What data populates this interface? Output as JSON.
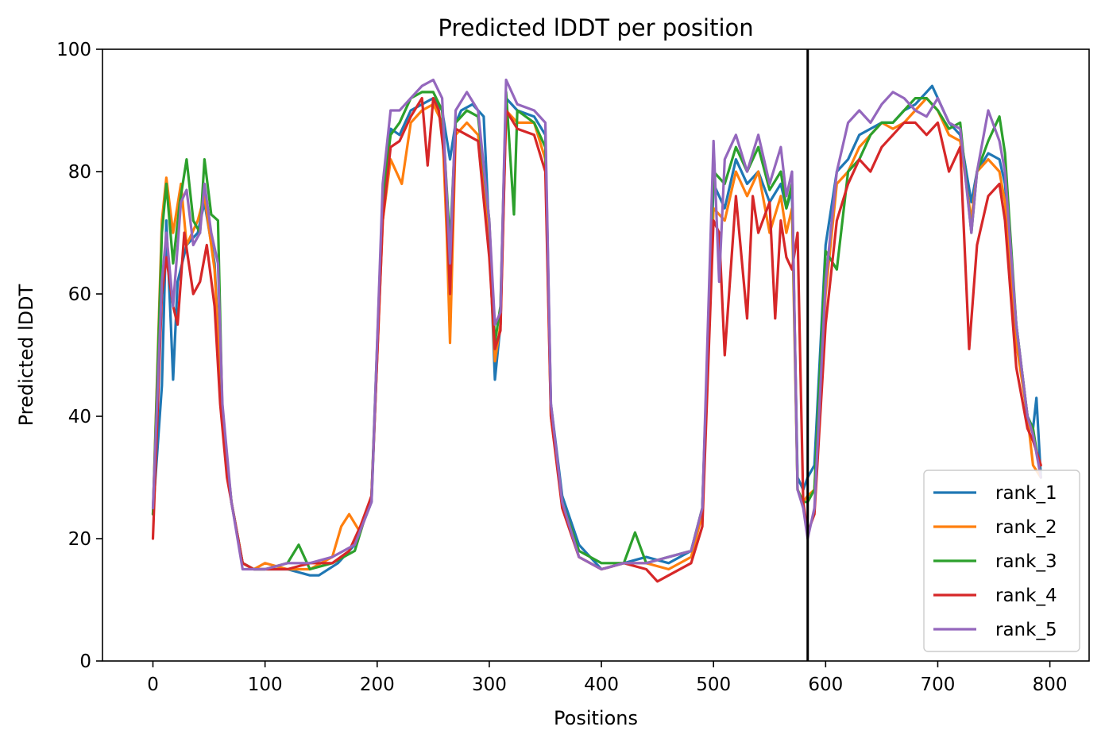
{
  "chart_data": {
    "type": "line",
    "title": "Predicted lDDT per position",
    "xlabel": "Positions",
    "ylabel": "Predicted lDDT",
    "xlim": [
      -45,
      835
    ],
    "ylim": [
      0,
      100
    ],
    "x_ticks": [
      0,
      100,
      200,
      300,
      400,
      500,
      600,
      700,
      800
    ],
    "y_ticks": [
      0,
      20,
      40,
      60,
      80,
      100
    ],
    "vertical_line_x": 584,
    "legend_position": "lower-right",
    "grid": false,
    "series": [
      {
        "name": "rank_1",
        "color": "#1f77b4",
        "x": [
          0,
          8,
          12,
          16,
          18,
          22,
          30,
          40,
          46,
          55,
          62,
          70,
          80,
          90,
          100,
          120,
          140,
          148,
          165,
          180,
          195,
          205,
          212,
          220,
          230,
          240,
          250,
          258,
          265,
          270,
          275,
          285,
          295,
          300,
          305,
          310,
          315,
          325,
          340,
          350,
          355,
          365,
          380,
          400,
          420,
          440,
          460,
          480,
          490,
          500,
          510,
          520,
          530,
          540,
          550,
          560,
          565,
          570,
          575,
          580,
          584,
          590,
          600,
          610,
          620,
          630,
          640,
          650,
          660,
          670,
          680,
          690,
          695,
          700,
          710,
          720,
          730,
          735,
          745,
          755,
          760,
          770,
          780,
          785,
          788,
          792
        ],
        "y": [
          24,
          45,
          72,
          55,
          46,
          62,
          68,
          70,
          75,
          65,
          40,
          26,
          16,
          15,
          15,
          15,
          14,
          14,
          16,
          19,
          26,
          74,
          87,
          86,
          90,
          91,
          92,
          90,
          82,
          88,
          90,
          91,
          89,
          70,
          46,
          55,
          92,
          90,
          89,
          86,
          42,
          27,
          19,
          15,
          16,
          17,
          16,
          18,
          25,
          78,
          74,
          82,
          78,
          80,
          75,
          78,
          74,
          77,
          30,
          28,
          30,
          32,
          68,
          80,
          82,
          86,
          87,
          88,
          88,
          90,
          91,
          93,
          94,
          92,
          88,
          86,
          75,
          80,
          83,
          82,
          78,
          55,
          40,
          38,
          43,
          30
        ]
      },
      {
        "name": "rank_2",
        "color": "#ff7f0e",
        "x": [
          0,
          8,
          12,
          18,
          25,
          30,
          40,
          46,
          55,
          62,
          70,
          80,
          90,
          100,
          120,
          140,
          160,
          168,
          175,
          185,
          195,
          205,
          212,
          222,
          230,
          240,
          250,
          258,
          262,
          265,
          270,
          280,
          290,
          300,
          305,
          310,
          315,
          325,
          340,
          350,
          355,
          365,
          380,
          400,
          420,
          440,
          460,
          480,
          490,
          500,
          510,
          520,
          530,
          540,
          550,
          560,
          565,
          570,
          575,
          580,
          584,
          590,
          600,
          610,
          620,
          630,
          640,
          650,
          660,
          670,
          680,
          690,
          700,
          710,
          720,
          730,
          735,
          745,
          755,
          760,
          770,
          780,
          785,
          792
        ],
        "y": [
          24,
          72,
          79,
          70,
          78,
          68,
          72,
          76,
          64,
          40,
          26,
          16,
          15,
          16,
          15,
          15,
          17,
          22,
          24,
          21,
          27,
          72,
          82,
          78,
          88,
          90,
          91,
          88,
          70,
          52,
          86,
          88,
          86,
          68,
          49,
          55,
          90,
          88,
          88,
          82,
          40,
          26,
          17,
          15,
          16,
          16,
          15,
          17,
          24,
          74,
          72,
          80,
          76,
          80,
          70,
          76,
          70,
          74,
          28,
          26,
          27,
          28,
          60,
          78,
          80,
          84,
          86,
          88,
          87,
          88,
          90,
          92,
          90,
          86,
          85,
          72,
          80,
          82,
          80,
          75,
          52,
          40,
          32,
          30
        ]
      },
      {
        "name": "rank_3",
        "color": "#2ca02c",
        "x": [
          0,
          8,
          12,
          18,
          24,
          30,
          36,
          42,
          46,
          52,
          58,
          62,
          70,
          80,
          90,
          100,
          120,
          130,
          140,
          160,
          180,
          195,
          205,
          212,
          220,
          230,
          240,
          250,
          258,
          265,
          270,
          280,
          290,
          300,
          305,
          310,
          315,
          322,
          325,
          340,
          350,
          355,
          365,
          380,
          400,
          420,
          430,
          440,
          460,
          480,
          490,
          500,
          510,
          520,
          530,
          540,
          550,
          560,
          565,
          570,
          575,
          580,
          584,
          590,
          600,
          610,
          615,
          620,
          630,
          640,
          650,
          660,
          670,
          680,
          690,
          700,
          710,
          720,
          730,
          735,
          745,
          755,
          760,
          770,
          780,
          785,
          792
        ],
        "y": [
          24,
          70,
          78,
          65,
          75,
          82,
          72,
          70,
          82,
          73,
          72,
          40,
          26,
          16,
          15,
          15,
          16,
          19,
          15,
          16,
          18,
          27,
          76,
          86,
          88,
          92,
          93,
          93,
          90,
          68,
          88,
          90,
          89,
          72,
          52,
          58,
          93,
          73,
          90,
          88,
          84,
          41,
          26,
          18,
          16,
          16,
          21,
          16,
          17,
          18,
          25,
          80,
          78,
          84,
          80,
          84,
          77,
          80,
          74,
          78,
          28,
          26,
          26,
          28,
          67,
          64,
          72,
          80,
          82,
          86,
          88,
          88,
          90,
          92,
          92,
          90,
          87,
          88,
          70,
          80,
          85,
          89,
          83,
          55,
          40,
          38,
          30
        ]
      },
      {
        "name": "rank_4",
        "color": "#d62728",
        "x": [
          0,
          8,
          12,
          18,
          22,
          28,
          36,
          42,
          48,
          55,
          60,
          66,
          72,
          80,
          90,
          100,
          120,
          140,
          160,
          175,
          185,
          195,
          205,
          212,
          220,
          230,
          240,
          245,
          250,
          255,
          260,
          265,
          270,
          280,
          290,
          300,
          305,
          310,
          315,
          325,
          340,
          350,
          355,
          365,
          380,
          400,
          420,
          440,
          450,
          460,
          480,
          490,
          500,
          505,
          510,
          520,
          530,
          535,
          540,
          550,
          555,
          560,
          565,
          570,
          575,
          580,
          584,
          590,
          600,
          610,
          620,
          630,
          640,
          650,
          660,
          670,
          680,
          690,
          700,
          710,
          720,
          728,
          735,
          745,
          755,
          760,
          770,
          780,
          785,
          792
        ],
        "y": [
          20,
          60,
          66,
          58,
          55,
          70,
          60,
          62,
          68,
          58,
          42,
          30,
          24,
          16,
          15,
          15,
          15,
          16,
          16,
          18,
          22,
          27,
          72,
          84,
          85,
          89,
          92,
          81,
          92,
          90,
          82,
          60,
          87,
          86,
          85,
          66,
          51,
          54,
          90,
          87,
          86,
          80,
          40,
          25,
          17,
          15,
          16,
          15,
          13,
          14,
          16,
          22,
          72,
          70,
          50,
          76,
          56,
          76,
          70,
          75,
          56,
          72,
          66,
          64,
          70,
          26,
          21,
          24,
          55,
          72,
          78,
          82,
          80,
          84,
          86,
          88,
          88,
          86,
          88,
          80,
          84,
          51,
          68,
          76,
          78,
          72,
          48,
          38,
          36,
          32
        ]
      },
      {
        "name": "rank_5",
        "color": "#9467bd",
        "x": [
          0,
          8,
          12,
          18,
          25,
          30,
          36,
          42,
          46,
          52,
          58,
          62,
          70,
          80,
          90,
          100,
          120,
          140,
          160,
          180,
          195,
          205,
          212,
          220,
          230,
          240,
          250,
          258,
          265,
          270,
          280,
          290,
          300,
          305,
          310,
          315,
          325,
          340,
          350,
          355,
          365,
          380,
          400,
          420,
          440,
          460,
          480,
          490,
          500,
          505,
          510,
          520,
          530,
          540,
          550,
          560,
          565,
          570,
          575,
          580,
          584,
          590,
          600,
          610,
          620,
          630,
          640,
          650,
          660,
          670,
          680,
          690,
          700,
          710,
          720,
          730,
          735,
          745,
          755,
          760,
          770,
          780,
          785,
          792
        ],
        "y": [
          25,
          62,
          70,
          58,
          75,
          77,
          68,
          70,
          78,
          70,
          65,
          42,
          26,
          15,
          15,
          15,
          16,
          16,
          17,
          19,
          26,
          78,
          90,
          90,
          92,
          94,
          95,
          92,
          65,
          90,
          93,
          90,
          72,
          55,
          57,
          95,
          91,
          90,
          88,
          42,
          26,
          17,
          15,
          16,
          16,
          17,
          18,
          25,
          85,
          62,
          82,
          86,
          80,
          86,
          78,
          84,
          76,
          80,
          28,
          25,
          20,
          25,
          62,
          80,
          88,
          90,
          88,
          91,
          93,
          92,
          90,
          89,
          92,
          88,
          87,
          70,
          80,
          90,
          85,
          80,
          55,
          40,
          37,
          30
        ]
      }
    ]
  }
}
